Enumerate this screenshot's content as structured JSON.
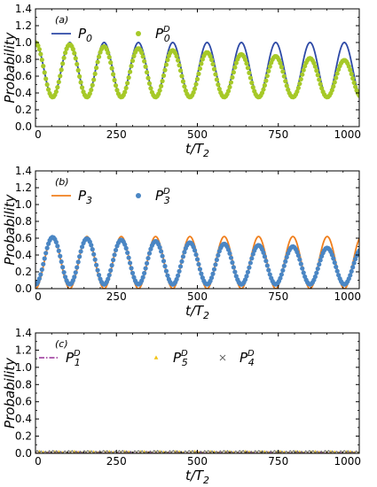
{
  "chart_data": [
    {
      "type": "line",
      "panel_label": "(a)",
      "xlabel_main": "t/T",
      "xlabel_sub": "2",
      "ylabel": "Probability",
      "xlim": [
        0,
        1000
      ],
      "ylim": [
        0.0,
        1.4
      ],
      "xticks": [
        0,
        250,
        500,
        750,
        1000
      ],
      "yticks": [
        "0.0",
        "0.2",
        "0.4",
        "0.6",
        "0.8",
        "1.0",
        "1.2",
        "1.4"
      ],
      "grid": false,
      "legend_position": "top-left",
      "series": [
        {
          "name": "P",
          "name_sub": "0",
          "name_sup": "",
          "style": "line",
          "color": "#2e4aa6",
          "model": "cos2",
          "period": 106,
          "phase": 0,
          "max": 1.0,
          "min": 0.35,
          "damp_to": null
        },
        {
          "name": "P",
          "name_sub": "0",
          "name_sup": "D",
          "style": "dots",
          "color": "#a6c928",
          "model": "cos2",
          "period": 106,
          "phase": 0,
          "max": 1.0,
          "min": 0.35,
          "damp_to": 0.78
        }
      ]
    },
    {
      "type": "line",
      "panel_label": "(b)",
      "xlabel_main": "t/T",
      "xlabel_sub": "2",
      "ylabel": "Probability",
      "xlim": [
        0,
        1000
      ],
      "ylim": [
        0.0,
        1.4
      ],
      "xticks": [
        0,
        250,
        500,
        750,
        1000
      ],
      "yticks": [
        "0.0",
        "0.2",
        "0.4",
        "0.6",
        "0.8",
        "1.0",
        "1.2",
        "1.4"
      ],
      "grid": false,
      "legend_position": "top-left",
      "series": [
        {
          "name": "P",
          "name_sub": "3",
          "name_sup": "",
          "style": "line",
          "color": "#f07f1d",
          "model": "sin2",
          "period": 106,
          "phase": 0,
          "max": 0.62,
          "min": 0.0,
          "damp_to": null
        },
        {
          "name": "P",
          "name_sub": "3",
          "name_sup": "D",
          "style": "dots",
          "color": "#4a86c4",
          "model": "sin2",
          "period": 106,
          "phase": 0,
          "max": 0.62,
          "min": 0.05,
          "damp_to": 0.47
        }
      ]
    },
    {
      "type": "line",
      "panel_label": "(c)",
      "xlabel_main": "t/T",
      "xlabel_sub": "2",
      "ylabel": "Probability",
      "xlim": [
        0,
        1000
      ],
      "ylim": [
        0.0,
        1.4
      ],
      "xticks": [
        0,
        250,
        500,
        750,
        1000
      ],
      "yticks": [
        "0.0",
        "0.2",
        "0.4",
        "0.6",
        "0.8",
        "1.0",
        "1.2",
        "1.4"
      ],
      "grid": false,
      "legend_position": "top",
      "series": [
        {
          "name": "P",
          "name_sub": "1",
          "name_sup": "D",
          "style": "dashdot",
          "color": "#a64da6",
          "model": "sin2",
          "period": 53,
          "phase": 0,
          "max": 0.015,
          "min": 0.0,
          "damp_to": null
        },
        {
          "name": "P",
          "name_sub": "5",
          "name_sup": "D",
          "style": "tri",
          "color": "#f2c417",
          "model": "sin2",
          "period": 53,
          "phase": 0.25,
          "max": 0.015,
          "min": 0.0,
          "damp_to": null
        },
        {
          "name": "P",
          "name_sub": "4",
          "name_sup": "D",
          "style": "cross",
          "color": "#666666",
          "model": "sin2",
          "period": 53,
          "phase": 0.5,
          "max": 0.012,
          "min": 0.0,
          "damp_to": null
        }
      ]
    }
  ]
}
